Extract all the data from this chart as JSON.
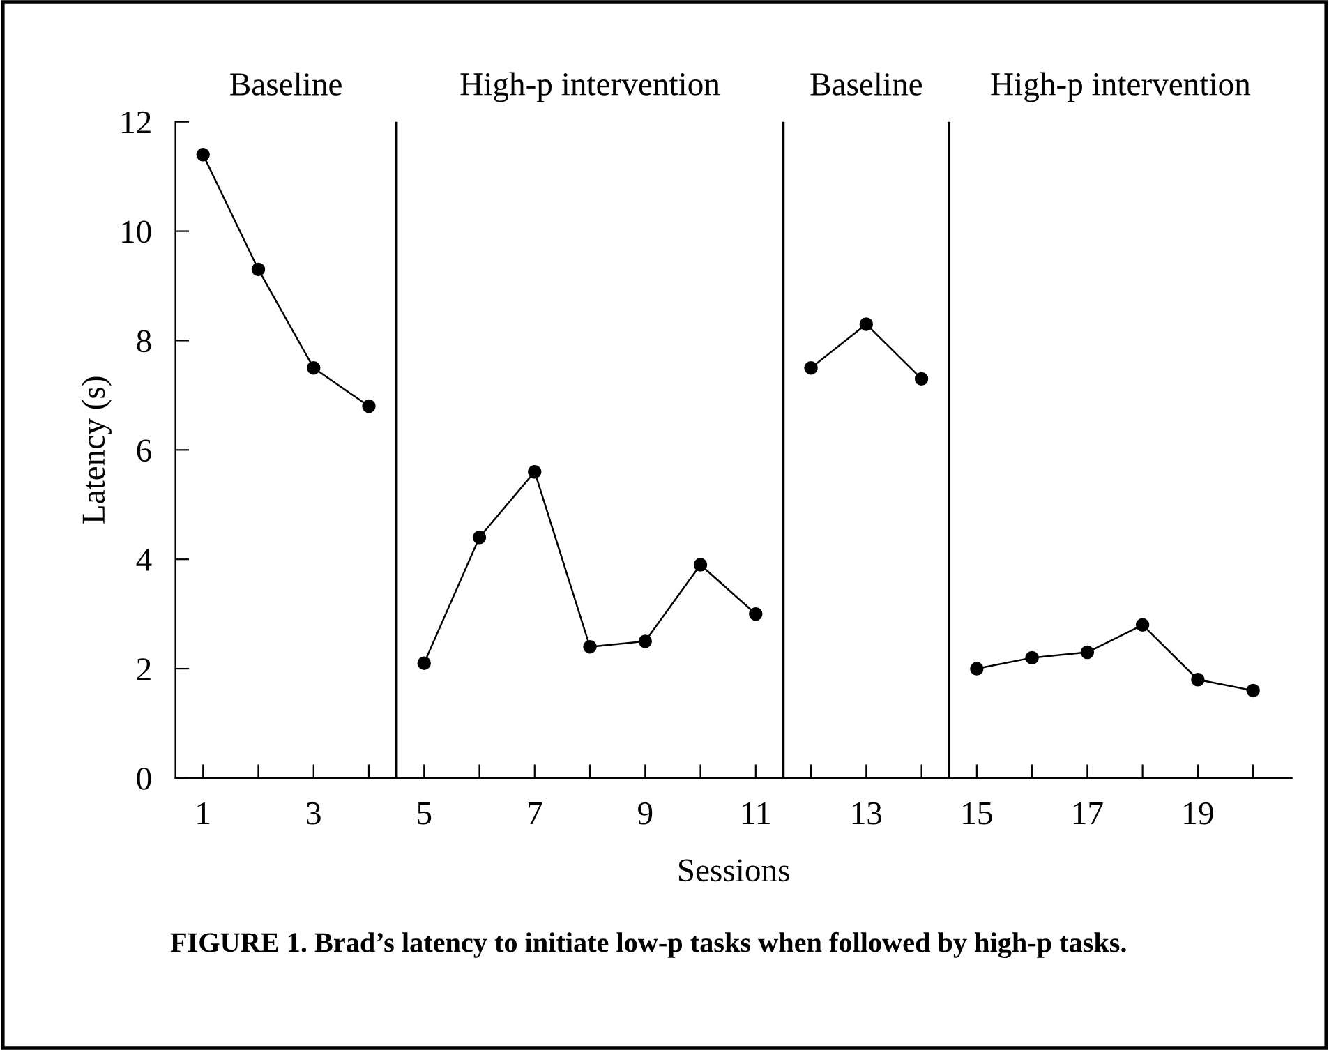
{
  "chart_data": {
    "type": "line",
    "title": "FIGURE 1. Brad’s latency to initiate low-p tasks when followed by high-p tasks.",
    "xlabel": "Sessions",
    "ylabel": "Latency (s)",
    "series": [
      {
        "color": "#000000",
        "x": [
          1,
          2,
          3,
          4
        ],
        "values": [
          11.4,
          9.3,
          7.5,
          6.8
        ]
      },
      {
        "color": "#000000",
        "x": [
          5,
          6,
          7,
          8,
          9,
          10,
          11
        ],
        "values": [
          2.1,
          4.4,
          5.6,
          2.4,
          2.5,
          3.9,
          3.0
        ]
      },
      {
        "color": "#000000",
        "x": [
          12,
          13,
          14
        ],
        "values": [
          7.5,
          8.3,
          7.3
        ]
      },
      {
        "color": "#000000",
        "x": [
          15,
          16,
          17,
          18,
          19,
          20
        ],
        "values": [
          2.0,
          2.2,
          2.3,
          2.8,
          1.8,
          1.6
        ]
      }
    ],
    "ref_lines": [
      {
        "axis": "x",
        "value": 4.5,
        "color": "#000000"
      },
      {
        "axis": "x",
        "value": 11.5,
        "color": "#000000"
      },
      {
        "axis": "x",
        "value": 14.5,
        "color": "#000000"
      }
    ],
    "annotations": [
      "Baseline",
      "High-p intervention",
      "Baseline",
      "High-p intervention"
    ],
    "xlim": [
      0.5,
      20.7
    ],
    "ylim": [
      0,
      12
    ],
    "xticks": [
      1,
      {
        "value": 2,
        "label": null
      },
      3,
      {
        "value": 4,
        "label": null
      },
      5,
      {
        "value": 6,
        "label": null
      },
      7,
      {
        "value": 8,
        "label": null
      },
      9,
      {
        "value": 10,
        "label": null
      },
      11,
      {
        "value": 12,
        "label": null
      },
      13,
      {
        "value": 14,
        "label": null
      },
      15,
      {
        "value": 16,
        "label": null
      },
      17,
      {
        "value": 18,
        "label": null
      },
      19,
      {
        "value": 20,
        "label": null
      }
    ],
    "yticks": [
      0,
      2,
      4,
      6,
      8,
      10,
      12
    ],
    "grid": false,
    "marker": "circle",
    "line_style": "solid"
  }
}
